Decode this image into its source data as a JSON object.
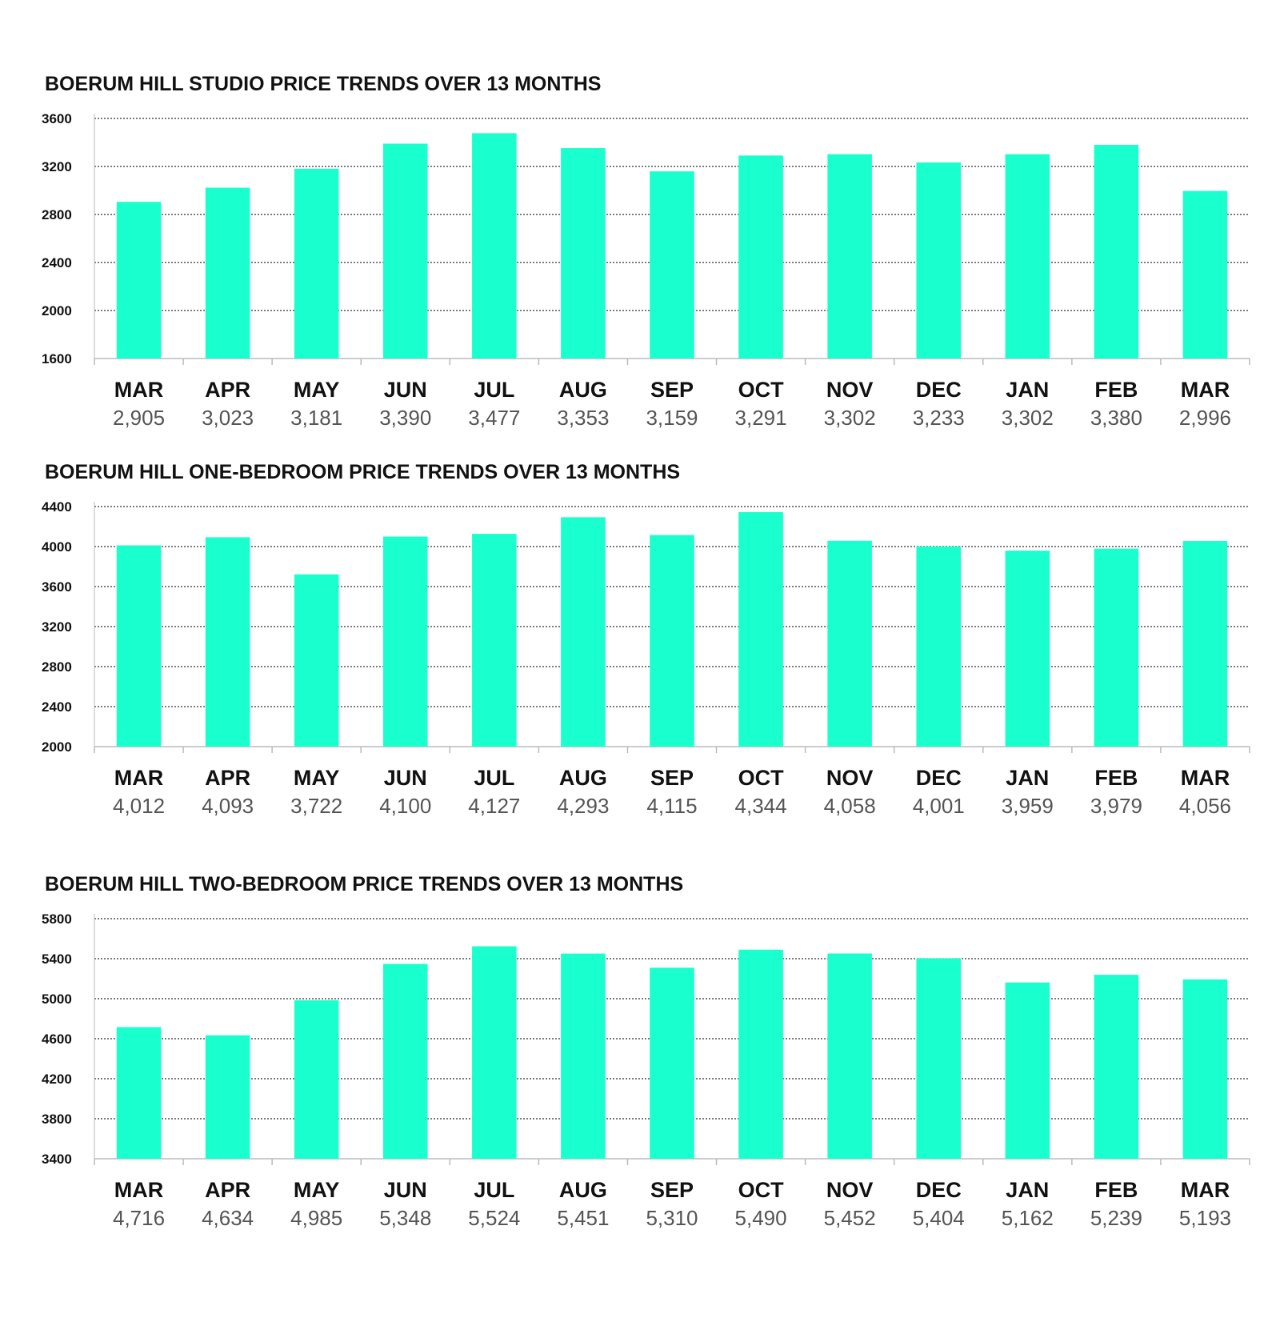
{
  "colors": {
    "bar": "#1affce",
    "grid": "#333333",
    "axis": "#bbbbbb"
  },
  "chart_data": [
    {
      "type": "bar",
      "title": "BOERUM HILL STUDIO PRICE TRENDS OVER 13 MONTHS",
      "categories": [
        "MAR",
        "APR",
        "MAY",
        "JUN",
        "JUL",
        "AUG",
        "SEP",
        "OCT",
        "NOV",
        "DEC",
        "JAN",
        "FEB",
        "MAR"
      ],
      "values": [
        2905,
        3023,
        3181,
        3390,
        3477,
        3353,
        3159,
        3291,
        3302,
        3233,
        3302,
        3380,
        2996
      ],
      "value_labels": [
        "2,905",
        "3,023",
        "3,181",
        "3,390",
        "3,477",
        "3,353",
        "3,159",
        "3,291",
        "3,302",
        "3,233",
        "3,302",
        "3,380",
        "2,996"
      ],
      "ylim": [
        1600,
        3600
      ],
      "yticks": [
        "3600",
        "3200",
        "2800",
        "2400",
        "2000",
        "1600"
      ],
      "ytick_values": [
        3600,
        3200,
        2800,
        2400,
        2000,
        1600
      ],
      "grid": true
    },
    {
      "type": "bar",
      "title": "BOERUM HILL ONE-BEDROOM PRICE TRENDS OVER 13 MONTHS",
      "categories": [
        "MAR",
        "APR",
        "MAY",
        "JUN",
        "JUL",
        "AUG",
        "SEP",
        "OCT",
        "NOV",
        "DEC",
        "JAN",
        "FEB",
        "MAR"
      ],
      "values": [
        4012,
        4093,
        3722,
        4100,
        4127,
        4293,
        4115,
        4344,
        4058,
        4001,
        3959,
        3979,
        4056
      ],
      "value_labels": [
        "4,012",
        "4,093",
        "3,722",
        "4,100",
        "4,127",
        "4,293",
        "4,115",
        "4,344",
        "4,058",
        "4,001",
        "3,959",
        "3,979",
        "4,056"
      ],
      "ylim": [
        2000,
        4400
      ],
      "yticks": [
        "4400",
        "4000",
        "3600",
        "3200",
        "2800",
        "2400",
        "2000"
      ],
      "ytick_values": [
        4400,
        4000,
        3600,
        3200,
        2800,
        2400,
        2000
      ],
      "grid": true
    },
    {
      "type": "bar",
      "title": "BOERUM HILL TWO-BEDROOM PRICE TRENDS OVER 13 MONTHS",
      "categories": [
        "MAR",
        "APR",
        "MAY",
        "JUN",
        "JUL",
        "AUG",
        "SEP",
        "OCT",
        "NOV",
        "DEC",
        "JAN",
        "FEB",
        "MAR"
      ],
      "values": [
        4716,
        4634,
        4985,
        5348,
        5524,
        5451,
        5310,
        5490,
        5452,
        5404,
        5162,
        5239,
        5193
      ],
      "value_labels": [
        "4,716",
        "4,634",
        "4,985",
        "5,348",
        "5,524",
        "5,451",
        "5,310",
        "5,490",
        "5,452",
        "5,404",
        "5,162",
        "5,239",
        "5,193"
      ],
      "ylim": [
        3400,
        5800
      ],
      "yticks": [
        "5800",
        "5400",
        "5000",
        "4600",
        "4200",
        "3800",
        "3400"
      ],
      "ytick_values": [
        5800,
        5400,
        5000,
        4600,
        4200,
        3800,
        3400
      ],
      "grid": true
    }
  ]
}
